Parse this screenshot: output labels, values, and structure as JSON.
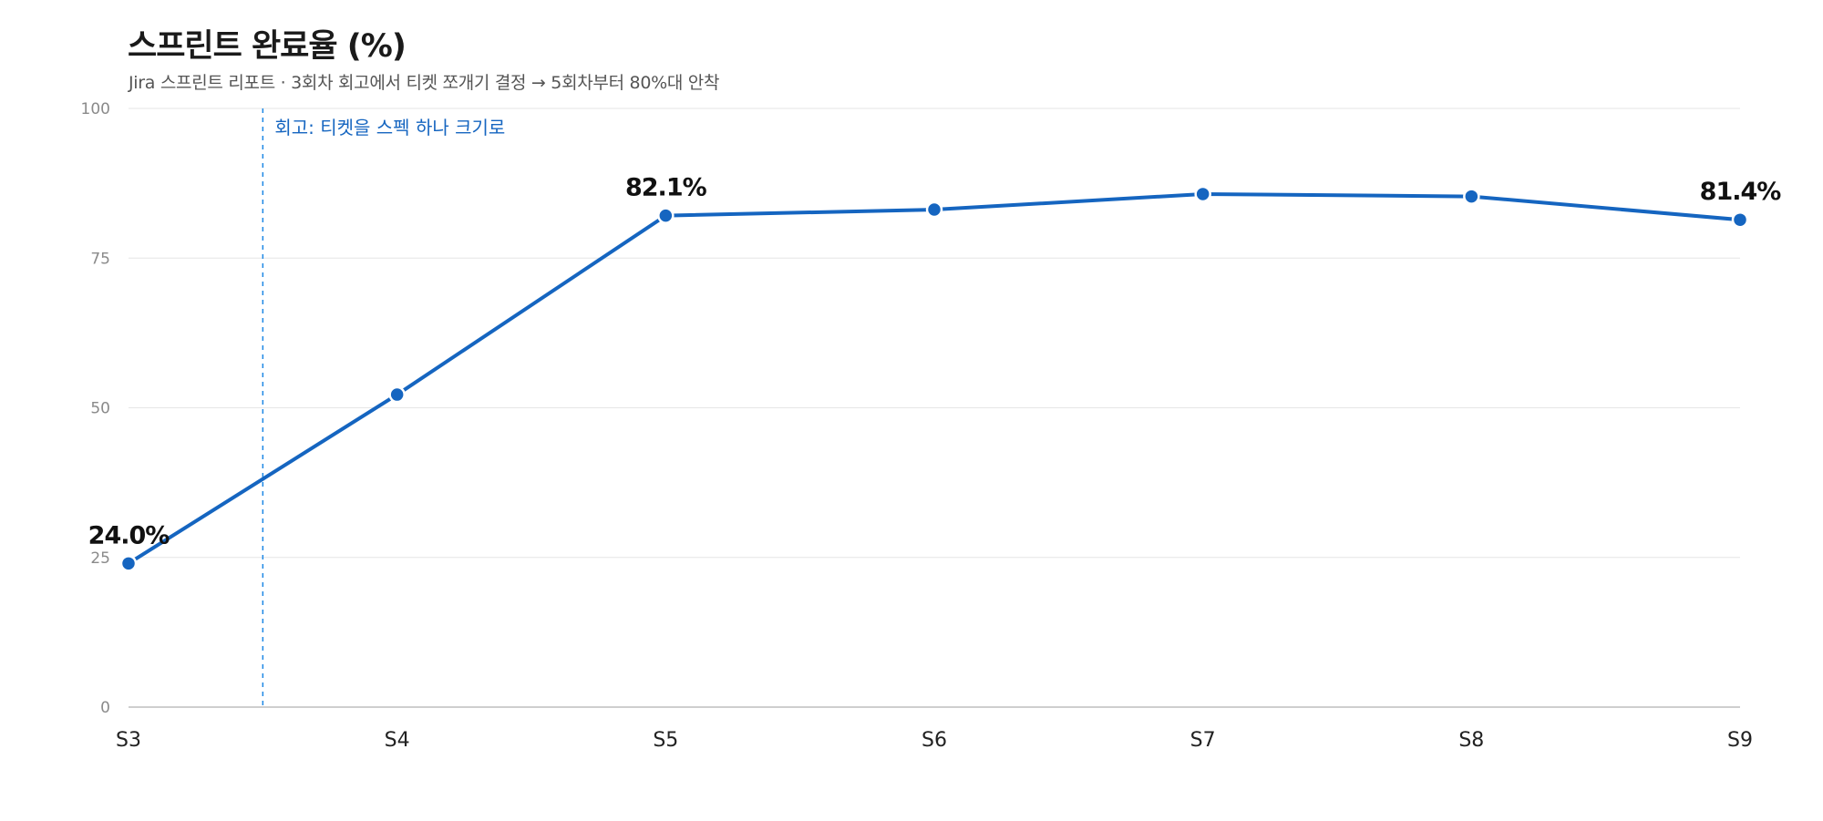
{
  "chart_data": {
    "type": "line",
    "title": "스프린트 완료율 (%)",
    "subtitle": "Jira 스프린트 리포트 · 3회차 회고에서 티켓 쪼개기 결정 → 5회차부터 80%대 안착",
    "categories": [
      "S3",
      "S4",
      "S5",
      "S6",
      "S7",
      "S8",
      "S9"
    ],
    "series": [
      {
        "values": [
          24.0,
          52.2,
          82.1,
          83.1,
          85.7,
          85.3,
          81.4
        ]
      }
    ],
    "data_labels": [
      {
        "index": 0,
        "text": "24.0%"
      },
      {
        "index": 2,
        "text": "82.1%"
      },
      {
        "index": 6,
        "text": "81.4%"
      }
    ],
    "annotation": {
      "at_category": 0.5,
      "text": "회고: 티켓을 스펙 하나 크기로"
    },
    "yticks": [
      0,
      25,
      50,
      75,
      100
    ],
    "ylim": [
      0,
      100
    ],
    "grid": true,
    "colors": {
      "line": "#1565c0",
      "annotation": "#1e88e5",
      "grid": "#e6e6e6",
      "axis": "#bdbdbd"
    }
  }
}
